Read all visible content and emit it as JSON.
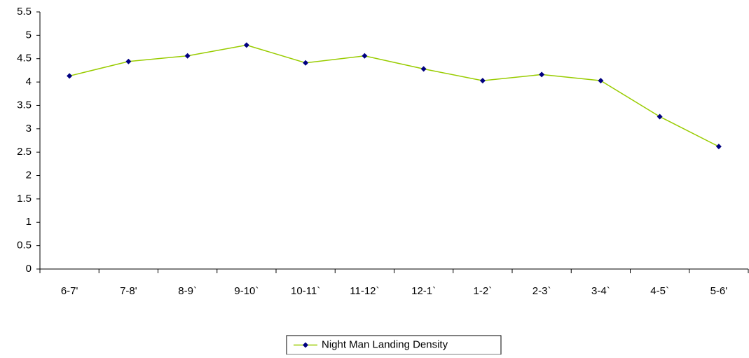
{
  "chart_data": {
    "type": "line",
    "categories": [
      "6-7'",
      "7-8'",
      "8-9`",
      "9-10`",
      "10-11`",
      "11-12`",
      "12-1`",
      "1-2`",
      "2-3`",
      "3-4`",
      "4-5`",
      "5-6'"
    ],
    "series": [
      {
        "name": "Night Man Landing Density",
        "color": "#99cc00",
        "marker_color": "#000080",
        "values": [
          4.13,
          4.44,
          4.56,
          4.79,
          4.41,
          4.56,
          4.28,
          4.03,
          4.16,
          4.03,
          3.26,
          2.62
        ]
      }
    ],
    "ylim": [
      0,
      5.5
    ],
    "yticks": [
      0,
      0.5,
      1,
      1.5,
      2,
      2.5,
      3,
      3.5,
      4,
      4.5,
      5,
      5.5
    ],
    "grid": false,
    "legend": "bottom"
  }
}
